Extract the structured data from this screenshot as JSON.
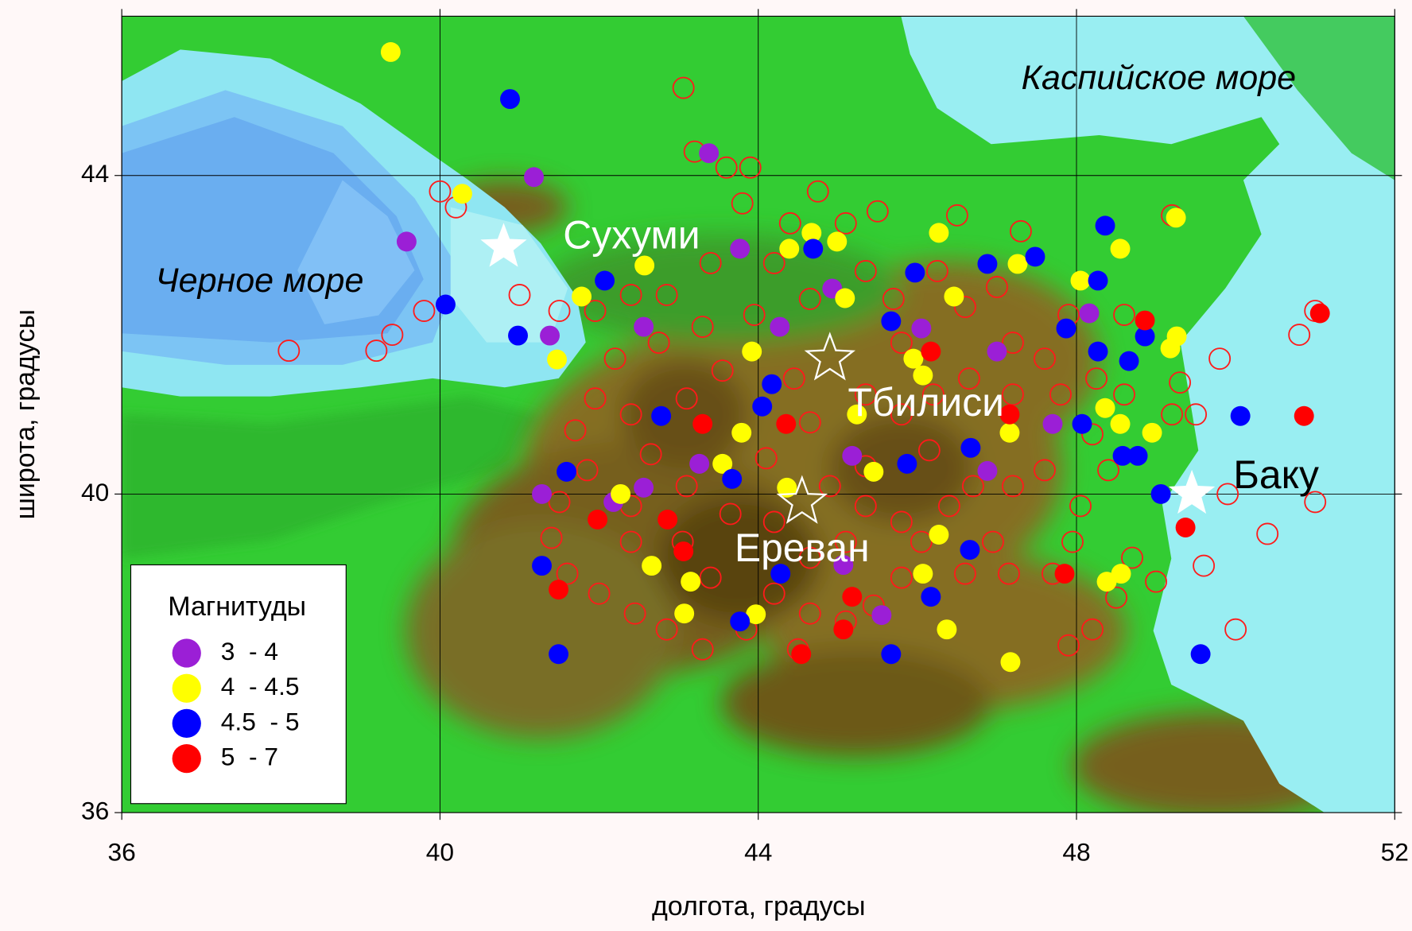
{
  "chart_data": {
    "type": "scatter",
    "xlabel": "долгота, градусы",
    "ylabel": "широта, градусы",
    "xlim": [
      36,
      52
    ],
    "ylim": [
      36,
      46
    ],
    "xticks": [
      36,
      40,
      44,
      48,
      52
    ],
    "yticks": [
      36,
      40,
      44
    ],
    "grid": true,
    "legend_title": "Магнитуды",
    "legend": "lower left",
    "series": [
      {
        "color": "#ff1a1a",
        "marker": "open",
        "x": [
          38.1,
          39.2,
          39.4,
          39.8,
          40.0,
          40.2,
          41.0,
          41.5,
          43.06,
          43.2,
          43.6,
          43.9,
          44.75,
          47.3,
          49.2,
          49.8,
          50.8,
          51.0,
          50.4,
          50.0,
          49.6,
          49.9,
          51.0,
          47.6,
          47.2,
          47.7,
          47.9,
          48.5,
          48.7,
          49.0,
          49.2,
          49.5,
          49.3,
          48.6,
          47.9,
          47.0,
          46.5,
          45.5,
          45.1,
          44.4,
          43.8,
          43.4,
          42.85,
          42.4,
          41.95,
          42.2,
          41.95,
          41.7,
          41.85,
          41.5,
          41.4,
          41.6,
          42.0,
          42.45,
          42.85,
          43.3,
          43.85,
          44.5,
          45.1,
          45.45,
          45.8,
          46.05,
          46.4,
          46.7,
          44.9,
          45.35,
          44.2,
          43.65,
          43.1,
          42.65,
          42.4,
          43.1,
          43.55,
          44.45,
          44.65,
          45.35,
          45.8,
          46.2,
          46.65,
          47.2,
          47.8,
          48.25,
          48.6,
          45.35,
          45.7,
          46.25,
          46.6,
          44.65,
          44.2,
          43.95,
          43.3,
          42.75,
          45.8,
          46.15,
          45.35,
          44.1,
          44.65,
          45.1,
          45.8,
          44.65,
          44.2,
          43.4,
          43.05,
          42.4,
          42.4,
          47.2,
          47.6,
          48.2,
          48.4,
          48.05,
          47.95,
          48.2,
          47.15,
          46.95,
          46.6
        ],
        "y": [
          41.8,
          41.8,
          42.0,
          42.3,
          43.8,
          43.6,
          42.5,
          42.3,
          45.1,
          44.3,
          44.1,
          44.1,
          43.8,
          43.3,
          43.5,
          41.7,
          42.0,
          42.3,
          39.5,
          38.3,
          39.1,
          40.0,
          39.9,
          40.3,
          40.1,
          39.0,
          38.1,
          38.7,
          39.2,
          38.9,
          41.0,
          41.0,
          41.4,
          42.25,
          42.25,
          42.6,
          43.5,
          43.55,
          43.4,
          43.4,
          43.65,
          42.9,
          42.5,
          42.5,
          42.3,
          41.7,
          41.2,
          40.8,
          40.3,
          39.9,
          39.45,
          39.0,
          38.75,
          38.5,
          38.3,
          38.05,
          38.3,
          38.05,
          38.4,
          38.6,
          38.95,
          39.4,
          39.85,
          40.1,
          40.1,
          39.85,
          39.65,
          39.75,
          40.1,
          40.5,
          41.0,
          41.2,
          41.55,
          41.45,
          40.9,
          41.25,
          41.0,
          41.25,
          41.45,
          41.25,
          41.25,
          41.45,
          41.25,
          42.8,
          42.45,
          42.8,
          42.35,
          42.45,
          42.9,
          42.25,
          42.1,
          41.9,
          41.9,
          40.55,
          40.35,
          40.45,
          39.2,
          39.4,
          39.65,
          38.5,
          38.75,
          38.95,
          39.4,
          39.4,
          39.85,
          41.9,
          41.7,
          40.75,
          40.3,
          39.85,
          39.4,
          38.3,
          39.0,
          39.4,
          39.0
        ]
      },
      {
        "name": "3  - 4",
        "color": "#9b1fd6",
        "marker": "filled",
        "x": [
          41.18,
          39.58,
          43.38,
          43.77,
          41.38,
          42.56,
          44.27,
          46.05,
          44.93,
          47.0,
          47.7,
          41.28,
          42.56,
          42.18,
          43.26,
          45.18,
          46.88,
          45.07,
          45.55,
          48.16
        ],
        "y": [
          43.98,
          43.17,
          44.28,
          43.08,
          41.99,
          42.1,
          42.1,
          42.08,
          42.58,
          41.79,
          40.88,
          40.0,
          40.08,
          39.9,
          40.38,
          40.48,
          40.29,
          39.11,
          38.48,
          42.27
        ]
      },
      {
        "name": "4  - 4.5",
        "color": "#ffff00",
        "marker": "filled",
        "x": [
          39.38,
          40.28,
          42.57,
          41.78,
          41.47,
          44.39,
          44.67,
          44.99,
          45.09,
          46.27,
          46.46,
          47.26,
          48.05,
          48.55,
          49.25,
          49.26,
          49.18,
          43.92,
          43.79,
          43.55,
          45.45,
          46.07,
          45.95,
          48.36,
          48.55,
          48.95,
          47.16,
          44.36,
          42.27,
          42.66,
          43.15,
          43.07,
          43.97,
          46.27,
          46.07,
          46.37,
          47.17,
          48.38,
          48.56,
          45.24
        ],
        "y": [
          45.55,
          43.77,
          42.87,
          42.48,
          41.69,
          43.08,
          43.28,
          43.17,
          42.46,
          43.28,
          42.48,
          42.89,
          42.68,
          43.08,
          43.47,
          41.98,
          41.83,
          41.79,
          40.77,
          40.38,
          40.28,
          41.49,
          41.7,
          41.08,
          40.88,
          40.77,
          40.77,
          40.08,
          40.0,
          39.1,
          38.9,
          38.5,
          38.49,
          39.49,
          39.0,
          38.3,
          37.89,
          38.9,
          39.0,
          41.0
        ]
      },
      {
        "name": "4.5  - 5",
        "color": "#0000ff",
        "marker": "filled",
        "x": [
          40.88,
          40.07,
          40.98,
          42.07,
          44.69,
          45.97,
          48.36,
          47.48,
          46.88,
          48.27,
          47.87,
          48.27,
          48.86,
          48.66,
          45.67,
          44.17,
          44.05,
          42.78,
          41.59,
          43.67,
          45.87,
          46.67,
          48.58,
          48.77,
          49.06,
          50.06,
          41.28,
          41.49,
          43.77,
          44.28,
          46.66,
          46.17,
          45.67,
          49.56,
          48.07
        ],
        "y": [
          44.96,
          42.38,
          41.99,
          42.68,
          43.08,
          42.78,
          43.37,
          42.98,
          42.89,
          42.68,
          42.08,
          41.79,
          41.98,
          41.67,
          42.17,
          41.38,
          41.1,
          40.98,
          40.28,
          40.19,
          40.38,
          40.58,
          40.48,
          40.48,
          40.0,
          40.98,
          39.1,
          37.99,
          38.4,
          39.0,
          39.3,
          38.71,
          37.99,
          37.99,
          40.88
        ]
      },
      {
        "name": "5  - 7",
        "color": "#ff0000",
        "marker": "filled",
        "x": [
          51.06,
          50.86,
          48.86,
          49.37,
          42.86,
          43.06,
          41.98,
          41.49,
          45.18,
          45.07,
          47.85,
          43.3,
          44.35,
          46.17,
          47.16,
          44.54
        ],
        "y": [
          42.27,
          40.98,
          42.18,
          39.58,
          39.68,
          39.28,
          39.68,
          38.8,
          38.71,
          38.3,
          39.0,
          40.88,
          40.88,
          41.79,
          41.0,
          37.99
        ]
      }
    ],
    "cities": [
      {
        "name": "Сухуми",
        "x": 40.8,
        "y": 43.1,
        "marker": "filled"
      },
      {
        "name": "Тбилиси",
        "x": 44.9,
        "y": 41.7,
        "marker": "open"
      },
      {
        "name": "Ереван",
        "x": 44.55,
        "y": 39.9,
        "marker": "open"
      },
      {
        "name": "Баку",
        "x": 49.45,
        "y": 40.0,
        "marker": "filled"
      }
    ],
    "annotations": [
      "Черное море",
      "Каспийское море"
    ]
  }
}
